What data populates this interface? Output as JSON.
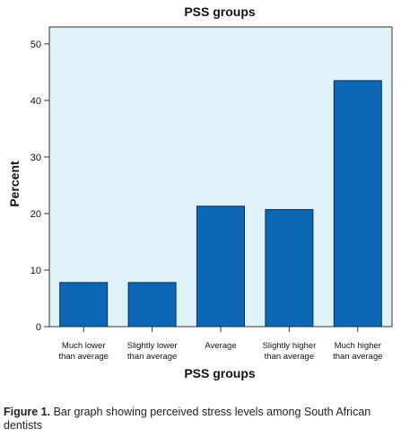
{
  "chart_data": {
    "type": "bar",
    "title": "PSS groups",
    "xlabel": "PSS groups",
    "ylabel": "Percent",
    "categories": [
      [
        "Much lower",
        "than average"
      ],
      [
        "Slightly lower",
        "than average"
      ],
      [
        "Average"
      ],
      [
        "Slightly higher",
        "than average"
      ],
      [
        "Much higher",
        "than average"
      ]
    ],
    "values": [
      7.8,
      7.8,
      21.3,
      20.7,
      43.5
    ],
    "ylim": [
      0,
      53
    ],
    "yticks": [
      0,
      10,
      20,
      30,
      40,
      50
    ],
    "grid": false,
    "colors": {
      "plot_background": "#dff2f8",
      "bar_fill": "#0d67b4",
      "bar_stroke": "#0b2f57",
      "axis": "#333333"
    }
  },
  "caption": {
    "label": "Figure 1.",
    "text": " Bar graph showing perceived stress levels among South African dentists"
  }
}
